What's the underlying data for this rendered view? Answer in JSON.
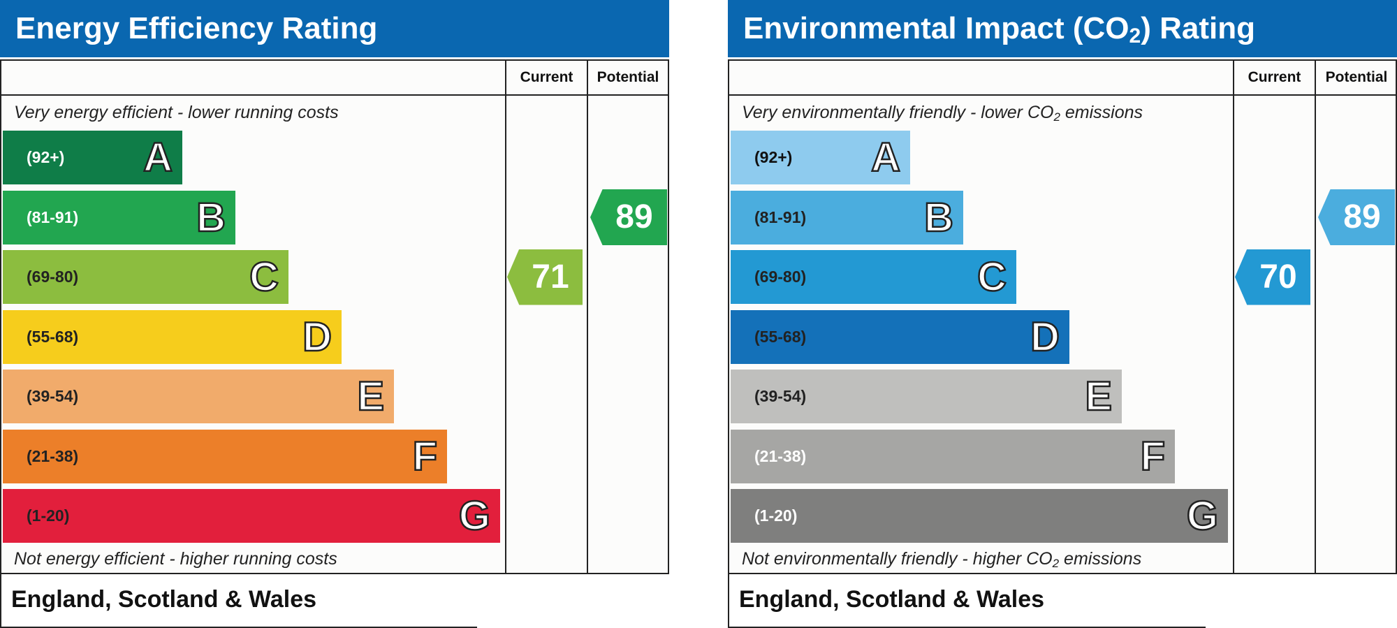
{
  "chart_data": [
    {
      "type": "bar",
      "title": "Energy Efficiency Rating",
      "columns": [
        "Current",
        "Potential"
      ],
      "top_note": "Very energy efficient - lower running costs",
      "bottom_note": "Not energy efficient - higher running costs",
      "footer": "England, Scotland & Wales",
      "categories": [
        "A",
        "B",
        "C",
        "D",
        "E",
        "F",
        "G"
      ],
      "ranges": [
        "(92+)",
        "(81-91)",
        "(69-80)",
        "(55-68)",
        "(39-54)",
        "(21-38)",
        "(1-20)"
      ],
      "colors": [
        "#0f7d48",
        "#22a650",
        "#8cbd3f",
        "#f6cd1c",
        "#f1ab6b",
        "#ec7f29",
        "#e21f3c"
      ],
      "range_text_colors": [
        "#ffffff",
        "#ffffff",
        "#222222",
        "#222222",
        "#222222",
        "#222222",
        "#222222"
      ],
      "current": 71,
      "current_band": "C",
      "current_color": "#8cbd3f",
      "potential": 89,
      "potential_band": "B",
      "potential_color": "#22a650"
    },
    {
      "type": "bar",
      "title": "Environmental Impact (CO",
      "title_sub": "2",
      "title_suffix": ") Rating",
      "columns": [
        "Current",
        "Potential"
      ],
      "top_note": "Very environmentally friendly - lower CO",
      "top_note_sub": "2",
      "top_note_suffix": " emissions",
      "bottom_note": "Not environmentally friendly - higher CO",
      "bottom_note_sub": "2",
      "bottom_note_suffix": " emissions",
      "footer": "England, Scotland & Wales",
      "categories": [
        "A",
        "B",
        "C",
        "D",
        "E",
        "F",
        "G"
      ],
      "ranges": [
        "(92+)",
        "(81-91)",
        "(69-80)",
        "(55-68)",
        "(39-54)",
        "(21-38)",
        "(1-20)"
      ],
      "colors": [
        "#8ecbee",
        "#4badde",
        "#2399d3",
        "#1471b9",
        "#bfbfbd",
        "#a6a6a4",
        "#7f7f7e"
      ],
      "range_text_colors": [
        "#111111",
        "#222222",
        "#222222",
        "#222222",
        "#222222",
        "#ffffff",
        "#ffffff"
      ],
      "current": 70,
      "current_band": "C",
      "current_color": "#2399d3",
      "potential": 89,
      "potential_band": "B",
      "potential_color": "#4badde"
    }
  ]
}
